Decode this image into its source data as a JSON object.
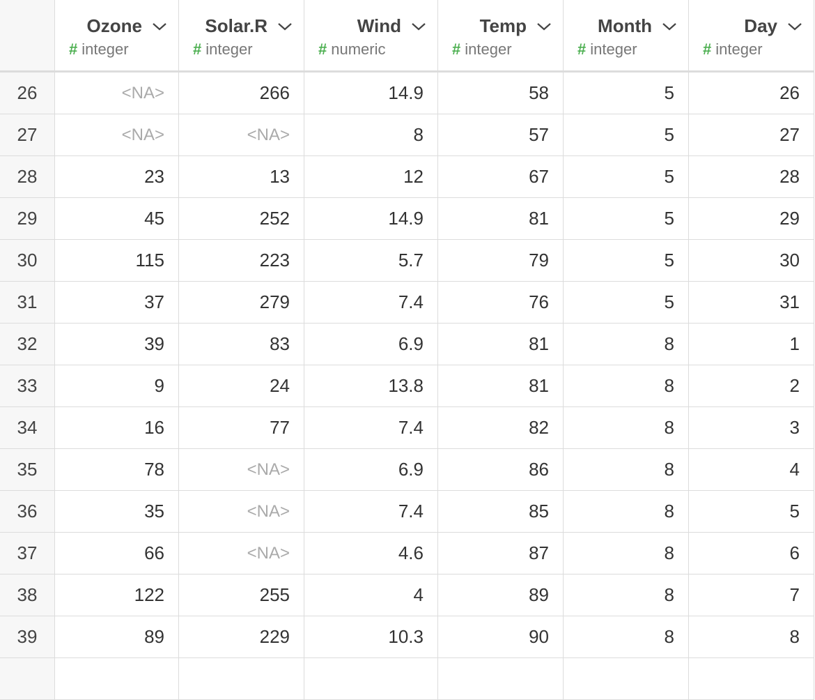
{
  "table": {
    "columns": [
      {
        "name": "Ozone",
        "type_icon": "#",
        "type": "integer"
      },
      {
        "name": "Solar.R",
        "type_icon": "#",
        "type": "integer"
      },
      {
        "name": "Wind",
        "type_icon": "#",
        "type": "numeric"
      },
      {
        "name": "Temp",
        "type_icon": "#",
        "type": "integer"
      },
      {
        "name": "Month",
        "type_icon": "#",
        "type": "integer"
      },
      {
        "name": "Day",
        "type_icon": "#",
        "type": "integer"
      }
    ],
    "rows": [
      {
        "index": 26,
        "cells": [
          "<NA>",
          266,
          14.9,
          58,
          5,
          26
        ]
      },
      {
        "index": 27,
        "cells": [
          "<NA>",
          "<NA>",
          8,
          57,
          5,
          27
        ]
      },
      {
        "index": 28,
        "cells": [
          23,
          13,
          12,
          67,
          5,
          28
        ]
      },
      {
        "index": 29,
        "cells": [
          45,
          252,
          14.9,
          81,
          5,
          29
        ]
      },
      {
        "index": 30,
        "cells": [
          115,
          223,
          5.7,
          79,
          5,
          30
        ]
      },
      {
        "index": 31,
        "cells": [
          37,
          279,
          7.4,
          76,
          5,
          31
        ]
      },
      {
        "index": 32,
        "cells": [
          39,
          83,
          6.9,
          81,
          8,
          1
        ]
      },
      {
        "index": 33,
        "cells": [
          9,
          24,
          13.8,
          81,
          8,
          2
        ]
      },
      {
        "index": 34,
        "cells": [
          16,
          77,
          7.4,
          82,
          8,
          3
        ]
      },
      {
        "index": 35,
        "cells": [
          78,
          "<NA>",
          6.9,
          86,
          8,
          4
        ]
      },
      {
        "index": 36,
        "cells": [
          35,
          "<NA>",
          7.4,
          85,
          8,
          5
        ]
      },
      {
        "index": 37,
        "cells": [
          66,
          "<NA>",
          4.6,
          87,
          8,
          6
        ]
      },
      {
        "index": 38,
        "cells": [
          122,
          255,
          4,
          89,
          8,
          7
        ]
      },
      {
        "index": 39,
        "cells": [
          89,
          229,
          10.3,
          90,
          8,
          8
        ]
      }
    ]
  }
}
